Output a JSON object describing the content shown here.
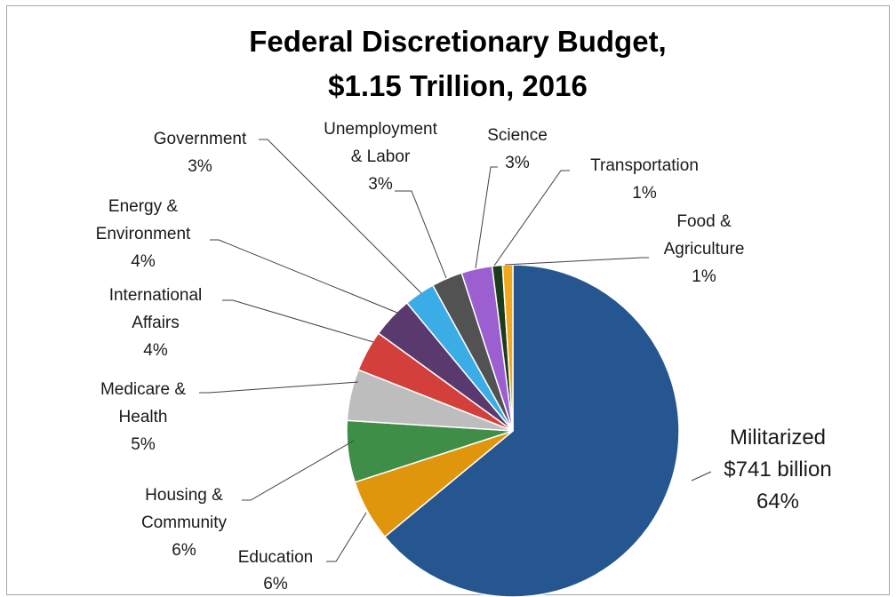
{
  "chart_data": {
    "type": "pie",
    "title": [
      "Federal Discretionary Budget,",
      "$1.15 Trillion, 2016"
    ],
    "slices": [
      {
        "label_lines": [
          "Militarized",
          "$741 billion",
          "64%"
        ],
        "value": 64,
        "color": "#25568f"
      },
      {
        "label_lines": [
          "Education",
          "6%"
        ],
        "value": 6,
        "color": "#e0960c"
      },
      {
        "label_lines": [
          "Housing &",
          "Community",
          "6%"
        ],
        "value": 6,
        "color": "#3f8e47"
      },
      {
        "label_lines": [
          "Medicare &",
          "Health",
          "5%"
        ],
        "value": 5,
        "color": "#bdbdbd"
      },
      {
        "label_lines": [
          "International",
          "Affairs",
          "4%"
        ],
        "value": 4,
        "color": "#d33f3b"
      },
      {
        "label_lines": [
          "Energy &",
          "Environment",
          "4%"
        ],
        "value": 4,
        "color": "#5a3a6e"
      },
      {
        "label_lines": [
          "Government",
          "3%"
        ],
        "value": 3,
        "color": "#3aace6"
      },
      {
        "label_lines": [
          "Unemployment",
          "& Labor",
          "3%"
        ],
        "value": 3,
        "color": "#525252"
      },
      {
        "label_lines": [
          "Science",
          "3%"
        ],
        "value": 3,
        "color": "#9b5fcf"
      },
      {
        "label_lines": [
          "Transportation",
          "1%"
        ],
        "value": 1,
        "color": "#1c3d1c"
      },
      {
        "label_lines": [
          "Food &",
          "Agriculture",
          "1%"
        ],
        "value": 1,
        "color": "#f2a81d"
      }
    ]
  }
}
